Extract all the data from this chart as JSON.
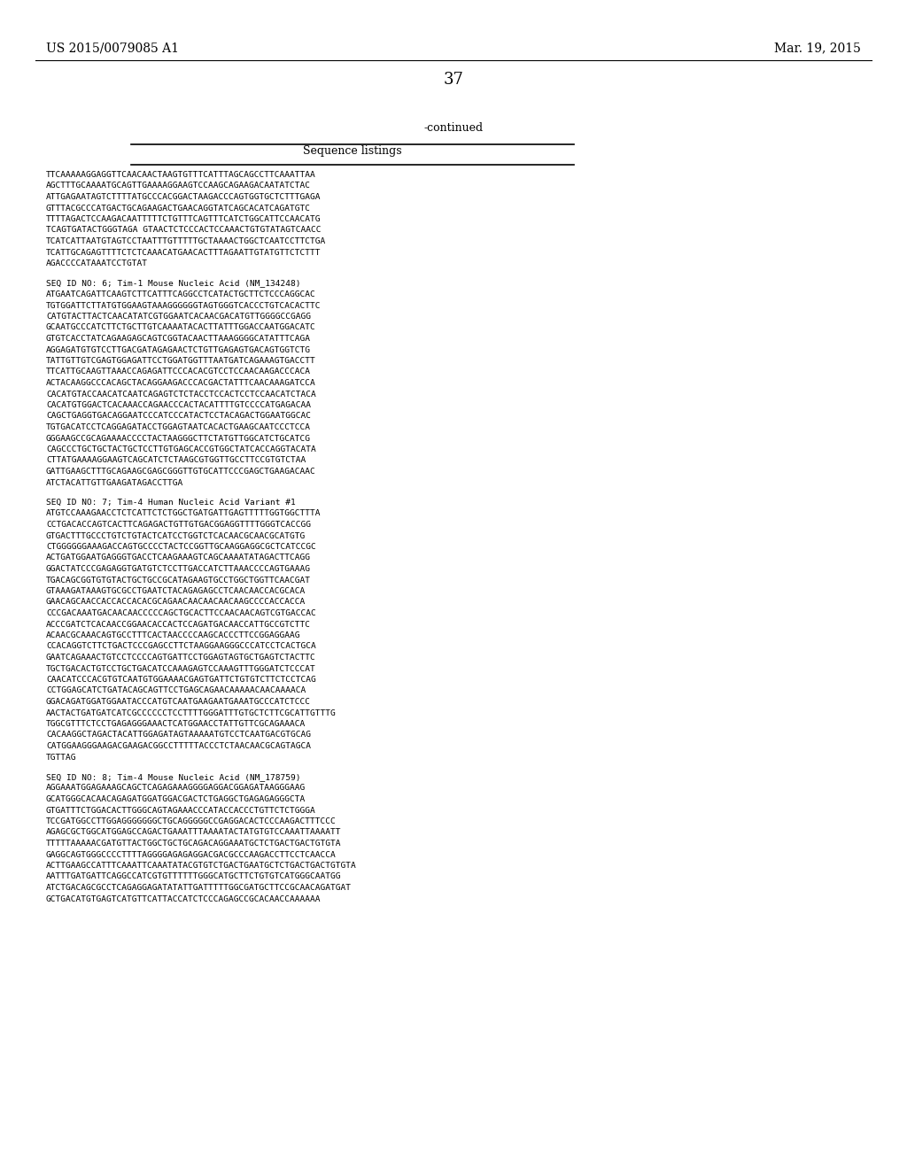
{
  "header_left": "US 2015/0079085 A1",
  "header_right": "Mar. 19, 2015",
  "page_number": "37",
  "continued_label": "-continued",
  "table_title": "Sequence listings",
  "background_color": "#ffffff",
  "text_color": "#000000",
  "sequences": [
    {
      "is_header": false,
      "lines": [
        "TTCAAAAAGGAGGTTCAACAACTAAGTGTTTCATTTAGCAGCCTTCAAATTAA",
        "AGCTTTGCAAAATGCAGTTGAAAAGGAAGTCCAAGCAGAAGACAATATCTAC",
        "ATTGAGAATAGTCTTTTATGCCCACGGACTAAGACCCAGTGGTGCTCTTTGAGA",
        "GTTTACGCCCATGACTGCAGAAGACTGAACAGGTATCAGCACATCAGATGTC",
        "TTTTAGACTCCAAGACAATTTTTCTGTTTCAGTTTCATCTGGCATTCCAACATG",
        "TCAGTGATACTGGGTAGA GTAACTCTCCCACTCCAAACTGTGTATAGTCAACC",
        "TCATCATTAATGTAGTCCTAATTTGTTTTTGCTAAAACTGGCTCAATCCTTCTGA",
        "TCATTGCAGAGTTTTCTCTCAAACATGAACACTTTAGAATTGTATGTTCTCTTT",
        "AGACCCCATAAATCCTGTAT"
      ]
    },
    {
      "is_header": true,
      "header_line": "SEQ ID NO: 6; Tim-1 Mouse Nucleic Acid (NM_134248)",
      "lines": [
        "ATGAATCAGATTCAAGTCTTCATTTCAGGCCTCATACTGCTTCTCCCAGGCAC",
        "TGTGGATTCTTATGTGGAAGTAAAGGGGGGTAGTGGGTCACCCTGTCACACTTC",
        "CATGTACTTACTCAACATATCGTGGAATCACAACGACATGTTGGGGCCGAGG",
        "GCAATGCCCATCTTCTGCTTGTCAAAATACACTTATTTGGACCAATGGACATC",
        "GTGTCACCTATCAGAAGAGCAGTCGGTACAACTTAAAGGGGCATATTTCAGA",
        "AGGAGATGTGTCCTTGACGATAGAGAACTCTGTTGAGAGTGACAGTGGTCTG",
        "TATTGTTGTCGAGTGGAGATTCCTGGATGGTTTAATGATCAGAAAGTGACCTT",
        "TTCATTGCAAGTTAAACCAGAGATTCCCACACGTCCTCCAACAAGACCCACA",
        "ACTACAAGGCCCACAGCTACAGGAAGACCCACGACTATTTCAACAAAGATCCA",
        "CACATGTACCAACATCAATCAGAGTCTCTACCTCCACTCCTCCAACATCTACA",
        "CACATGTGGACTCACAAACCAGAACCCACTACATTTTGTCCCCATGAGACAA",
        "CAGCTGAGGTGACAGGAATCCCATCCCATACTCCTACAGACTGGAATGGCAC",
        "TGTGACATCCTCAGGAGATACCTGGAGTAATCACACTGAAGCAATCCCTCCA",
        "GGGAAGCCGCAGAAAACCCCTACTAAGGGCTTCTATGTTGGCATCTGCATCG",
        "CAGCCCTGCTGCTACTGCTCCTTGTGAGCACCGTGGCTATCACCAGGTACATA",
        "CTTATGAAAAGGAAGTCAGCATCTCTAAGCGTGGTTGCCTTCCGTGTCTAA",
        "GATTGAAGCTTTGCAGAAGCGAGCGGGTTGTGCATTCCCGAGCTGAAGACAAC",
        "ATCTACATTGTTGAAGATAGACCTTGA"
      ]
    },
    {
      "is_header": true,
      "header_line": "SEQ ID NO: 7; Tim-4 Human Nucleic Acid Variant #1",
      "lines": [
        "ATGTCCAAAGAACCTCTCATTCTCTGGCTGATGATTGAGTTTTTGGTGGCTTTA",
        "CCTGACACCAGTCACTTCAGAGACTGTTGTGACGGAGGTTTTGGGTCACCGG",
        "GTGACTTTGCCCTGTCTGTACTCATCCTGGTCTCACAACGCAACGCATGTG",
        "CTGGGGGGAAAGACCAGTGCCCCTACTCCGGTTGCAAGGAGGCGCTCATCCGC",
        "ACTGATGGAATGAGGGTGACCTCAAGAAAGTCAGCAAAATATAGACTTCAGG",
        "GGACTATCCCGAGAGGTGATGTCTCCTTGACCATCTTAAACCCCAGTGAAAG",
        "TGACAGCGGTGTGTACTGCTGCCGCATAGAAGTGCCTGGCTGGTTCAACGAT",
        "GTAAAGATAAAGTGCGCCTGAATCTACAGAGAGCCTCAACAACCACGCACA",
        "GAACAGCAACCACCACCACACGCAGAACAACAACAACAAGCCCCACCACCA",
        "CCCGACAAATGACAACAACCCCCAGCTGCACTTCCAACAACAGTCGTGACCAC",
        "ACCCGATCTCACAACCGGAACACCACTCCAGATGACAACCATTGCCGTCTTC",
        "ACAACGCAAACAGTGCCTTTCACTAACCCCAAGCACCCTTCCGGAGGAAG",
        "CCACAGGTCTTCTGACTCCCGAGCCTTCTAAGGAAGGGCCCATCCTCACTGCA",
        "GAATCAGAAACTGTCCTCCCCAGTGATTCCTGGAGTAGTGCTGAGTCTACTTC",
        "TGCTGACACTGTCCTGCTGACATCCAAAGAGTCCAAAGTTTGGGATCTCCCAT",
        "CAACATCCCACGTGTCAATGTGGAAAACGAGTGATTCTGTGTCTTCTCCTCAG",
        "CCTGGAGCATCTGATACAGCAGTTCCTGAGCAGAACAAAAACAACAAAACA",
        "GGACAGATGGATGGAATACCCATGTCAATGAAGAATGAAATGCCCATCTCCC",
        "AACTACTGATGATCATCGCCCCCCTCCTTTTGGGATTTGTGCTCTTCGCATTGTTTG",
        "TGGCGTTTCTCCTGAGAGGGAAACTCATGGAACCTATTGTTCGCAGAAACA",
        "CACAAGGCTAGACTACATTGGAGATAGTAAAAATGTCCTCAATGACGTGCAG",
        "CATGGAAGGGAAGACGAAGACGGCCTTTTTACCCTCTAACAACGCAGTAGCA",
        "TGTTAG"
      ]
    },
    {
      "is_header": true,
      "header_line": "SEQ ID NO: 8; Tim-4 Mouse Nucleic Acid (NM_178759)",
      "lines": [
        "AGGAAATGGAGAAAGCAGCTCAGAGAAAGGGGAGGACGGAGATAAGGGAAG",
        "GCATGGGCACAACAGAGATGGATGGACGACTCTGAGGCTGAGAGAGGGCTA",
        "GTGATTTCTGGACACTTGGGCAGTAGAAACCCATACCACCCTGTTCTCTGGGA",
        "TCCGATGGCCTTGGAGGGGGGGCTGCAGGGGGCCGAGGACACTCCCAAGACTTTCCC",
        "AGAGCGCTGGCATGGAGCCAGACTGAAATTTAAAATACTATGTGTCCAAATTAAAATT",
        "TTTTTAAAAACGATGTTACTGGCTGCTGCAGACAGGAAATGCTCTGACTGACTGTGTA",
        "GAGGCAGTGGGCCCCTTTTAGGGGAGAGAGGACGACGCCCAAGACCTTCCTCAACCA",
        "ACTTGAAGCCATTTCAAATTCAAATATACGTGTCTGACTGAATGCTCTGACTGACTGTGTA",
        "AATTTGATGATTCAGGCCATCGTGTTTTTTGGGCATGCTTCTGTGTCATGGGCAATGG",
        "ATCTGACAGCGCCTCAGAGGAGATATATTGATTTTTGGCGATGCTTCCGCAACAGATGAT",
        "GCTGACATGTGAGTCATGTTCATTACCATCTCCCAGAGCCGCACAACCAAAAAA"
      ]
    }
  ]
}
